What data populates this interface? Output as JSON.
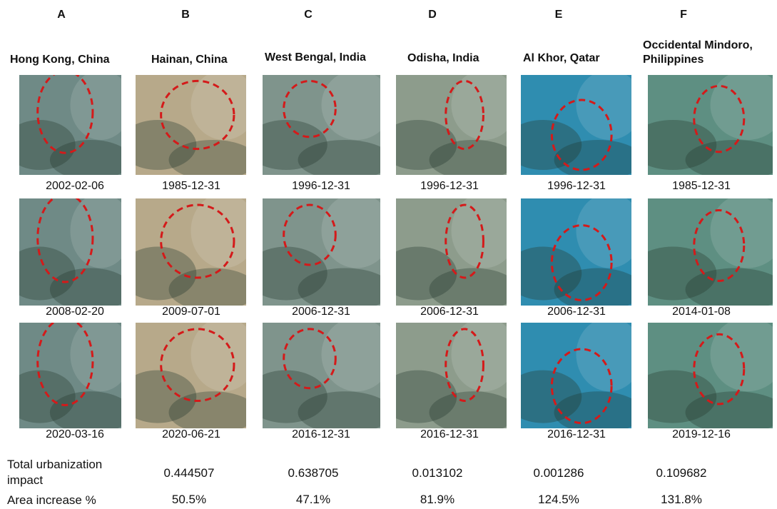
{
  "columns": [
    {
      "letter": "A",
      "location": "Hong Kong, China",
      "dates": [
        "2002-02-06",
        "2008-02-20",
        "2020-03-16"
      ],
      "urbanization": "0.444507",
      "area_increase": "50.5%"
    },
    {
      "letter": "B",
      "location": "Hainan, China",
      "dates": [
        "1985-12-31",
        "2009-07-01",
        "2020-06-21"
      ],
      "urbanization": "0.638705",
      "area_increase": "47.1%"
    },
    {
      "letter": "C",
      "location": "West Bengal, India",
      "dates": [
        "1996-12-31",
        "2006-12-31",
        "2016-12-31"
      ],
      "urbanization": "0.013102",
      "area_increase": "81.9%"
    },
    {
      "letter": "D",
      "location": "Odisha, India",
      "dates": [
        "1996-12-31",
        "2006-12-31",
        "2016-12-31"
      ],
      "urbanization": "0.001286",
      "area_increase": "124.5%"
    },
    {
      "letter": "E",
      "location": "Al Khor, Qatar",
      "dates": [
        "1996-12-31",
        "2006-12-31",
        "2016-12-31"
      ],
      "urbanization": "0.109682",
      "area_increase": "131.8%"
    },
    {
      "letter": "F",
      "location": "Occidental Mindoro, Philippines",
      "dates": [
        "1985-12-31",
        "2014-01-08",
        "2019-12-16"
      ],
      "urbanization": "",
      "area_increase": ""
    }
  ],
  "row_labels": {
    "urbanization": "Total urbanization impact",
    "area_increase": "Area increase %"
  },
  "tile_colors": {
    "hongkong": "#6f8a86",
    "hainan": "#b7a98a",
    "westbengal": "#7f948c",
    "odisha": "#8d9c8c",
    "alkhor": "#2f8db0",
    "mindoro": "#5e8f82",
    "ellipse": "#d41a1a"
  }
}
